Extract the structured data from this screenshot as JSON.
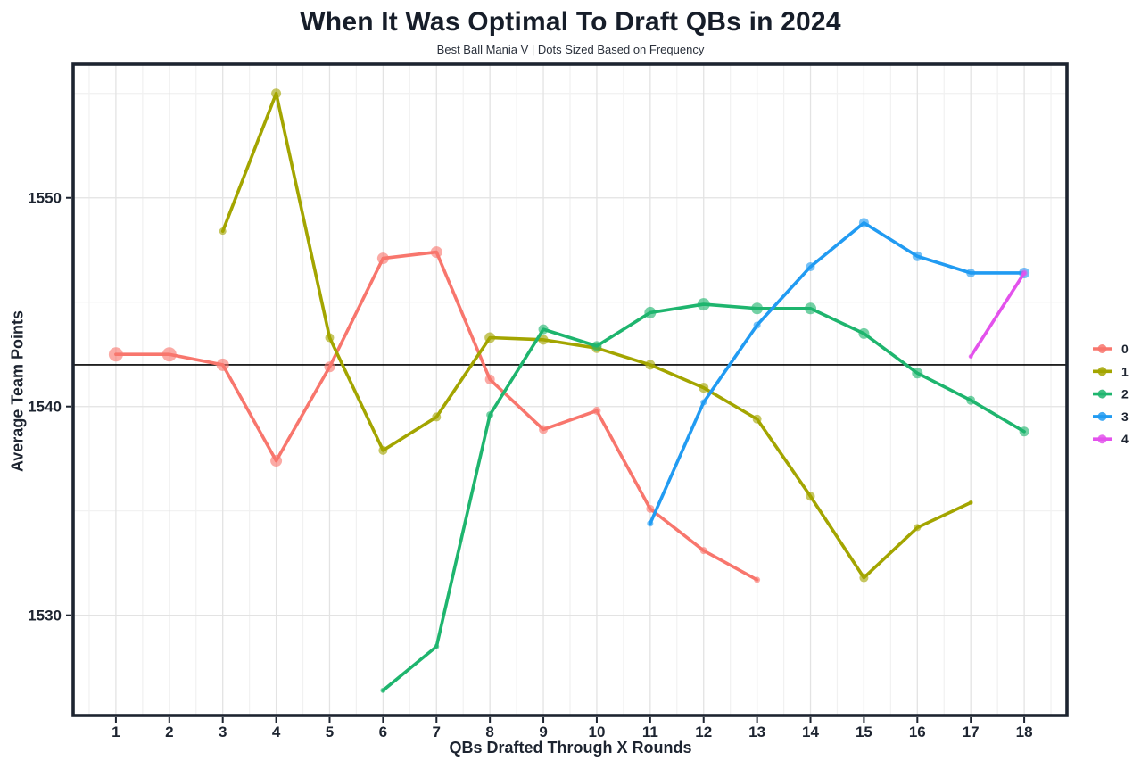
{
  "chart_data": {
    "type": "line",
    "title": "When It Was Optimal To Draft QBs in 2024",
    "subtitle": "Best Ball Mania V | Dots Sized Based on Frequency",
    "xlabel": "QBs Drafted Through X Rounds",
    "ylabel": "Average Team Points",
    "x_ticks": [
      1,
      2,
      3,
      4,
      5,
      6,
      7,
      8,
      9,
      10,
      11,
      12,
      13,
      14,
      15,
      16,
      17,
      18
    ],
    "y_ticks": [
      1530,
      1540,
      1550
    ],
    "y_minor_gridlines": [
      1535,
      1545,
      1555
    ],
    "xlim": [
      0.2,
      18.8
    ],
    "ylim": [
      1525.2,
      1556.4
    ],
    "reference_line_y": 1542,
    "grid": true,
    "legend_position": "right",
    "dot_size_note": "dot radii in px encode draft frequency (no numeric labels shown)",
    "series": [
      {
        "name": "0",
        "color": "#F8766D",
        "x": [
          1,
          2,
          3,
          4,
          5,
          6,
          7,
          8,
          9,
          10,
          11,
          12,
          13
        ],
        "y": [
          1542.5,
          1542.5,
          1542.0,
          1537.4,
          1541.9,
          1547.1,
          1547.4,
          1541.3,
          1538.9,
          1539.8,
          1535.1,
          1533.1,
          1531.7
        ],
        "sizes": [
          8,
          8,
          7,
          6.5,
          6,
          6.5,
          6.5,
          5.5,
          5,
          4.5,
          4.5,
          4,
          3.5
        ]
      },
      {
        "name": "1",
        "color": "#A3A500",
        "x": [
          3,
          4,
          5,
          6,
          7,
          8,
          9,
          10,
          11,
          12,
          13,
          14,
          15,
          16,
          17
        ],
        "y": [
          1548.4,
          1555.0,
          1543.3,
          1537.9,
          1539.5,
          1543.3,
          1543.2,
          1542.8,
          1542.0,
          1540.9,
          1539.4,
          1535.7,
          1531.8,
          1534.2,
          1535.4
        ],
        "sizes": [
          4,
          5.5,
          5,
          5,
          5,
          6,
          5.5,
          5.5,
          5.5,
          5.5,
          5,
          5,
          5,
          4,
          2.5
        ]
      },
      {
        "name": "2",
        "color": "#1EB56E",
        "x": [
          6,
          7,
          8,
          9,
          10,
          11,
          12,
          13,
          14,
          15,
          16,
          17,
          18
        ],
        "y": [
          1526.4,
          1528.5,
          1539.6,
          1543.7,
          1542.9,
          1544.5,
          1544.9,
          1544.7,
          1544.7,
          1543.5,
          1541.6,
          1540.3,
          1538.8
        ],
        "sizes": [
          3,
          3,
          4,
          5.5,
          5.5,
          6.5,
          7,
          6.5,
          6.5,
          6,
          6,
          5,
          5.5
        ]
      },
      {
        "name": "3",
        "color": "#219BF2",
        "x": [
          11,
          12,
          13,
          14,
          15,
          16,
          17,
          18
        ],
        "y": [
          1534.4,
          1540.2,
          1543.9,
          1546.7,
          1548.8,
          1547.2,
          1546.4,
          1546.4
        ],
        "sizes": [
          3.5,
          3.5,
          4,
          5,
          5.5,
          5.5,
          5,
          6
        ]
      },
      {
        "name": "4",
        "color": "#E352EC",
        "x": [
          17,
          18
        ],
        "y": [
          1542.4,
          1546.4
        ],
        "sizes": [
          2.5,
          3.5
        ]
      }
    ]
  },
  "legend": {
    "items": [
      {
        "label": "0",
        "color": "#F8766D"
      },
      {
        "label": "1",
        "color": "#A3A500"
      },
      {
        "label": "2",
        "color": "#1EB56E"
      },
      {
        "label": "3",
        "color": "#219BF2"
      },
      {
        "label": "4",
        "color": "#E352EC"
      }
    ]
  },
  "colors": {
    "axis_text": "#1d2430",
    "title_text": "#161d29",
    "grid_major": "#e3e3e3",
    "grid_minor": "#f1f1f1",
    "plot_border": "#1d2430",
    "reference_line": "#000000",
    "background": "#ffffff"
  }
}
